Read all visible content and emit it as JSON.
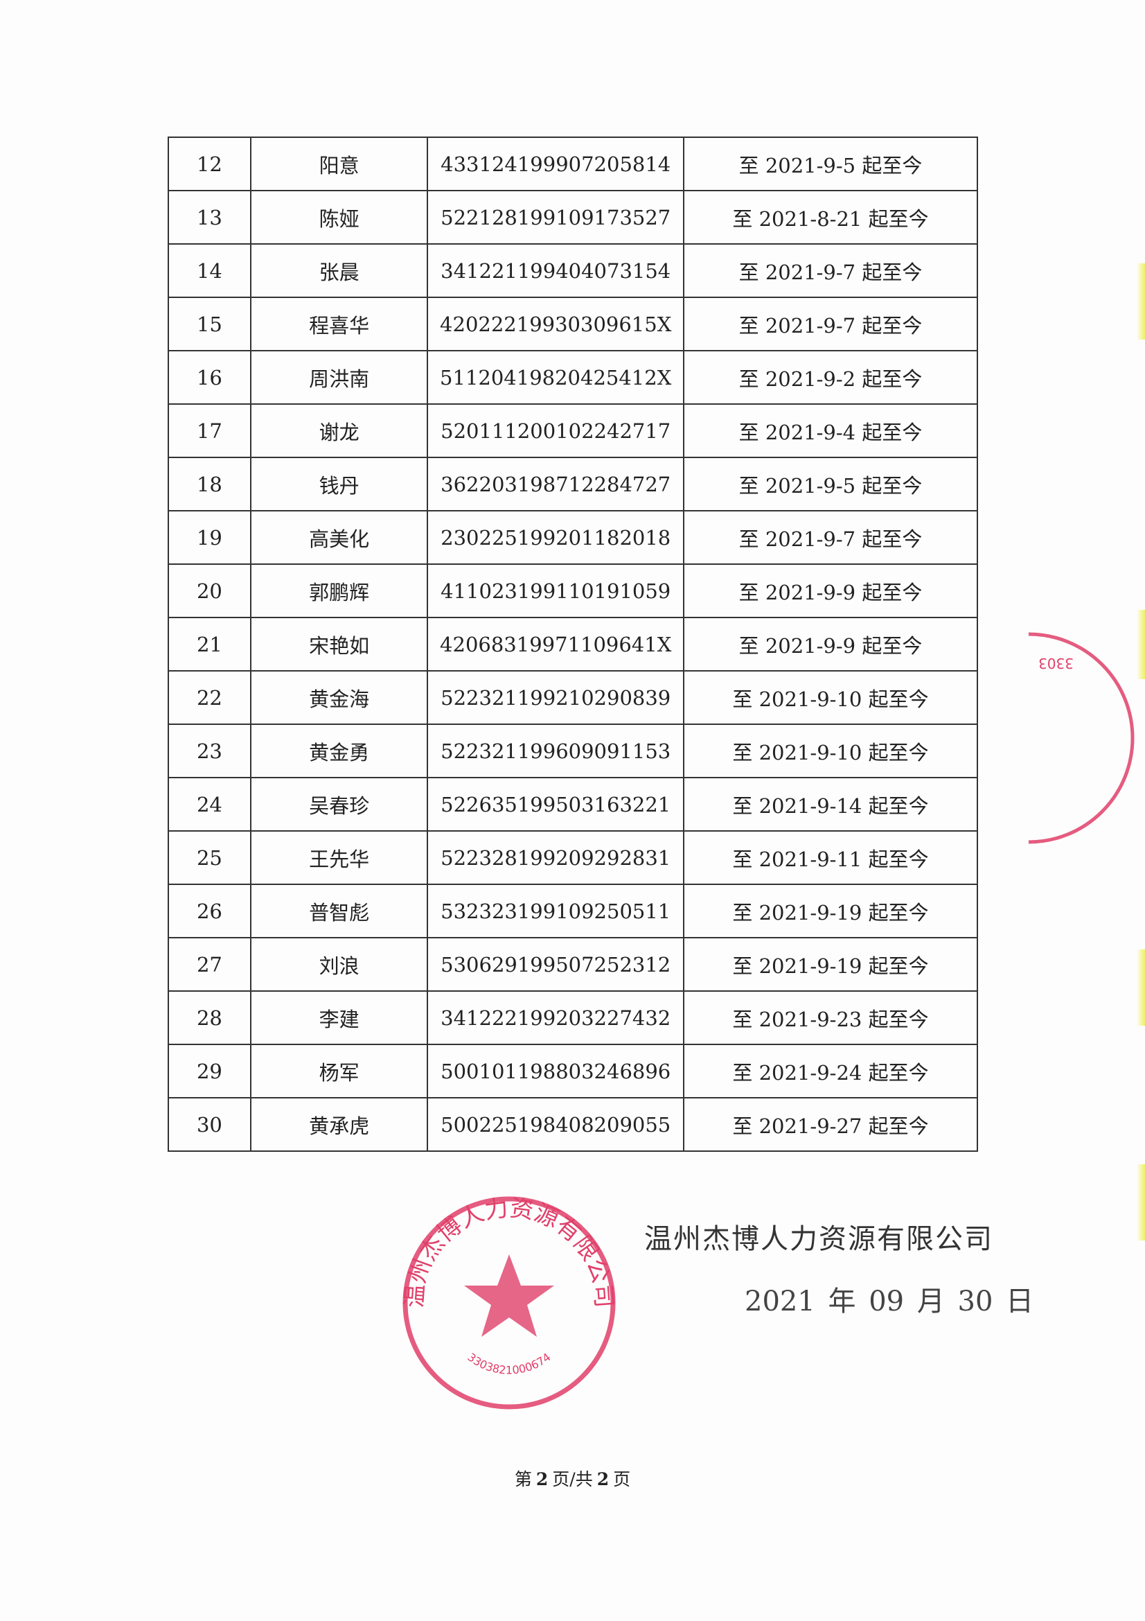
{
  "table": {
    "rows": [
      {
        "no": "12",
        "name": "阳意",
        "id": "433124199907205814",
        "period": "至 2021-9-5 起至今"
      },
      {
        "no": "13",
        "name": "陈娅",
        "id": "522128199109173527",
        "period": "至 2021-8-21 起至今"
      },
      {
        "no": "14",
        "name": "张晨",
        "id": "341221199404073154",
        "period": "至 2021-9-7 起至今"
      },
      {
        "no": "15",
        "name": "程喜华",
        "id": "42022219930309615X",
        "period": "至 2021-9-7 起至今"
      },
      {
        "no": "16",
        "name": "周洪南",
        "id": "51120419820425412X",
        "period": "至 2021-9-2 起至今"
      },
      {
        "no": "17",
        "name": "谢龙",
        "id": "520111200102242717",
        "period": "至 2021-9-4 起至今"
      },
      {
        "no": "18",
        "name": "钱丹",
        "id": "362203198712284727",
        "period": "至 2021-9-5 起至今"
      },
      {
        "no": "19",
        "name": "高美化",
        "id": "230225199201182018",
        "period": "至 2021-9-7 起至今"
      },
      {
        "no": "20",
        "name": "郭鹏辉",
        "id": "411023199110191059",
        "period": "至 2021-9-9 起至今"
      },
      {
        "no": "21",
        "name": "宋艳如",
        "id": "42068319971109641X",
        "period": "至 2021-9-9 起至今"
      },
      {
        "no": "22",
        "name": "黄金海",
        "id": "522321199210290839",
        "period": "至 2021-9-10 起至今"
      },
      {
        "no": "23",
        "name": "黄金勇",
        "id": "522321199609091153",
        "period": "至 2021-9-10 起至今"
      },
      {
        "no": "24",
        "name": "吴春珍",
        "id": "522635199503163221",
        "period": "至 2021-9-14 起至今"
      },
      {
        "no": "25",
        "name": "王先华",
        "id": "522328199209292831",
        "period": "至 2021-9-11 起至今"
      },
      {
        "no": "26",
        "name": "普智彪",
        "id": "532323199109250511",
        "period": "至 2021-9-19 起至今"
      },
      {
        "no": "27",
        "name": "刘浪",
        "id": "530629199507252312",
        "period": "至 2021-9-19 起至今"
      },
      {
        "no": "28",
        "name": "李建",
        "id": "341222199203227432",
        "period": "至 2021-9-23 起至今"
      },
      {
        "no": "29",
        "name": "杨军",
        "id": "500101198803246896",
        "period": "至 2021-9-24 起至今"
      },
      {
        "no": "30",
        "name": "黄承虎",
        "id": "500225198408209055",
        "period": "至 2021-9-27 起至今"
      }
    ]
  },
  "signature": {
    "company": "温州杰博人力资源有限公司",
    "date": "2021 年 09 月 30 日"
  },
  "footer": {
    "prefix": "第",
    "page": "2",
    "middle": "页/共",
    "total": "2",
    "suffix": "页"
  },
  "seal": {
    "text": "温州杰博人力资源有限公司",
    "number": "3303821000674",
    "partial_number": "3303",
    "color": "#e0406a"
  }
}
